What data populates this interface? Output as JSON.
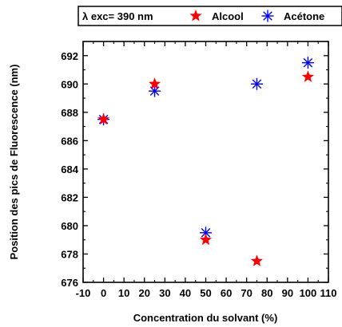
{
  "chart_data": {
    "type": "scatter",
    "xlabel": "Concentration du solvant (%)",
    "ylabel": "Position des pics de Fluorescence (nm)",
    "xlim": [
      -10,
      110
    ],
    "ylim": [
      676,
      693
    ],
    "x_ticks": [
      "-10",
      "0",
      "10",
      "20",
      "30",
      "40",
      "50",
      "60",
      "70",
      "80",
      "90",
      "100",
      "110"
    ],
    "y_ticks": [
      "676",
      "678",
      "680",
      "682",
      "684",
      "686",
      "688",
      "690",
      "692"
    ],
    "legend": {
      "title": "λ exc= 390 nm",
      "placement": "top"
    },
    "series": [
      {
        "name": "Alcool",
        "marker": "star",
        "color": "#ff0000",
        "points": [
          {
            "x": 0,
            "y": 687.5
          },
          {
            "x": 25,
            "y": 690.0
          },
          {
            "x": 50,
            "y": 679.0
          },
          {
            "x": 75,
            "y": 677.5
          },
          {
            "x": 100,
            "y": 690.5
          }
        ]
      },
      {
        "name": "Acétone",
        "marker": "asterisk",
        "color": "#0000ff",
        "points": [
          {
            "x": 0,
            "y": 687.5
          },
          {
            "x": 25,
            "y": 689.5
          },
          {
            "x": 50,
            "y": 679.5
          },
          {
            "x": 75,
            "y": 690.0
          },
          {
            "x": 100,
            "y": 691.5
          }
        ]
      }
    ]
  }
}
